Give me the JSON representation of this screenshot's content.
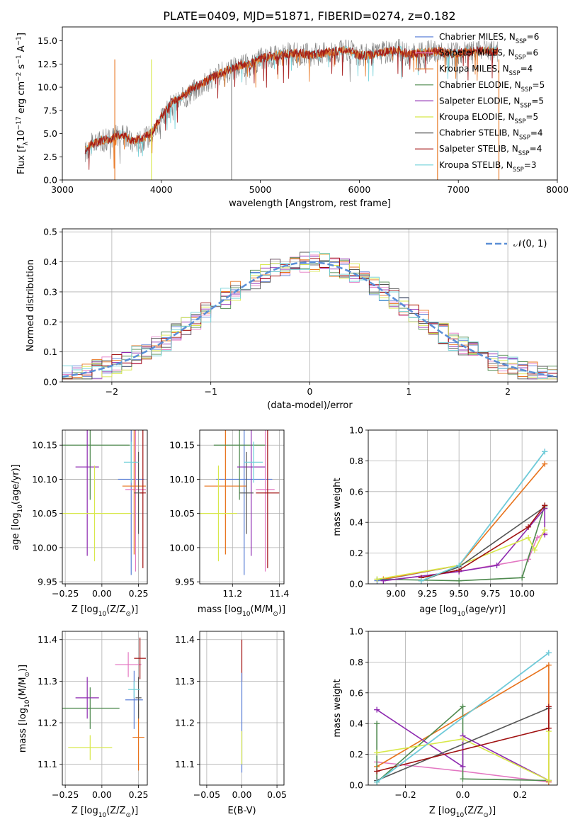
{
  "title": "PLATE=0409, MJD=51871, FIBERID=0274, z=0.182",
  "colors": {
    "chabrier_miles": "#5b7fd6",
    "salpeter_miles": "#e377c2",
    "kroupa_miles": "#e8731c",
    "chabrier_elodie": "#4f8a4f",
    "salpeter_elodie": "#8e2ab0",
    "kroupa_elodie": "#d8e84a",
    "chabrier_stelib": "#555555",
    "salpeter_stelib": "#a01010",
    "kroupa_stelib": "#6fd0d8",
    "normal": "#5b8fd6",
    "data": "#808080"
  },
  "chart_data": [
    {
      "id": "spectrum",
      "type": "line",
      "xlabel": "wavelength [Angstrom, rest frame]",
      "ylabel": "Flux [f_λ 10^-17 erg cm^-2 s^-1 A^-1]",
      "xlim": [
        3000,
        8000
      ],
      "ylim": [
        0,
        16.5
      ],
      "xticks": [
        "3000",
        "4000",
        "5000",
        "6000",
        "7000",
        "8000"
      ],
      "yticks": [
        "0.0",
        "2.5",
        "5.0",
        "7.5",
        "10.0",
        "12.5",
        "15.0"
      ],
      "legend": [
        {
          "label": "Chabrier MILES, N",
          "sub": "SSP",
          "eq": "=6",
          "color": "#5b7fd6"
        },
        {
          "label": "Salpeter MILES, N",
          "sub": "SSP",
          "eq": "=6",
          "color": "#e377c2"
        },
        {
          "label": "Kroupa MILES, N",
          "sub": "SSP",
          "eq": "=4",
          "color": "#e8731c"
        },
        {
          "label": "Chabrier ELODIE, N",
          "sub": "SSP",
          "eq": "=5",
          "color": "#4f8a4f"
        },
        {
          "label": "Salpeter ELODIE, N",
          "sub": "SSP",
          "eq": "=5",
          "color": "#8e2ab0"
        },
        {
          "label": "Kroupa ELODIE, N",
          "sub": "SSP",
          "eq": "=5",
          "color": "#d8e84a"
        },
        {
          "label": "Chabrier STELIB, N",
          "sub": "SSP",
          "eq": "=4",
          "color": "#555555"
        },
        {
          "label": "Salpeter STELIB, N",
          "sub": "SSP",
          "eq": "=4",
          "color": "#a01010"
        },
        {
          "label": "Kroupa STELIB, N",
          "sub": "SSP",
          "eq": "=3",
          "color": "#6fd0d8"
        }
      ],
      "series": [
        {
          "name": "data",
          "x": [
            3230,
            3300,
            3400,
            3500,
            3600,
            3700,
            3800,
            3900,
            4000,
            4100,
            4200,
            4300,
            4400,
            4500,
            4600,
            4700,
            4800,
            4900,
            5000,
            5100,
            5200,
            5300,
            5400,
            5500,
            5600,
            5700,
            5800,
            5900,
            6000,
            6100,
            6200,
            6300,
            6400,
            6500,
            6600,
            6700,
            6800,
            6900,
            7000,
            7100,
            7200,
            7300,
            7400
          ],
          "y": [
            3.0,
            3.8,
            4.2,
            4.6,
            5.2,
            4.0,
            4.2,
            5.0,
            6.5,
            8.0,
            8.6,
            9.5,
            10.2,
            10.8,
            11.4,
            11.9,
            12.3,
            12.4,
            13.0,
            13.2,
            13.5,
            13.6,
            13.6,
            13.5,
            13.6,
            13.8,
            13.8,
            13.9,
            13.3,
            13.5,
            13.7,
            13.9,
            14.0,
            13.4,
            13.6,
            13.8,
            13.8,
            13.5,
            13.6,
            13.8,
            13.8,
            13.9,
            13.9
          ]
        },
        {
          "name": "model",
          "x": [
            3230,
            3300,
            3400,
            3500,
            3600,
            3700,
            3800,
            3900,
            4000,
            4100,
            4200,
            4300,
            4400,
            4500,
            4600,
            4700,
            4800,
            4900,
            5000,
            5100,
            5200,
            5300,
            5400,
            5500,
            5600,
            5700,
            5800,
            5900,
            6000,
            6100,
            6200,
            6300,
            6400,
            6500,
            6600,
            6700,
            6800,
            6900,
            7000,
            7100,
            7200,
            7300,
            7400
          ],
          "y": [
            3.3,
            3.9,
            4.3,
            4.4,
            5.0,
            4.2,
            4.4,
            5.1,
            6.8,
            8.3,
            8.9,
            9.8,
            10.3,
            11.0,
            11.5,
            12.0,
            12.4,
            12.5,
            13.1,
            13.3,
            13.5,
            13.6,
            13.7,
            13.5,
            13.6,
            13.8,
            13.9,
            13.9,
            13.4,
            13.5,
            13.7,
            13.9,
            14.0,
            13.5,
            13.7,
            13.8,
            13.9,
            13.6,
            13.7,
            13.8,
            13.9,
            13.9,
            13.9
          ]
        }
      ]
    },
    {
      "id": "residuals",
      "type": "line",
      "xlabel": "(data-model)/error",
      "ylabel": "Normed distribution",
      "xlim": [
        -2.5,
        2.5
      ],
      "ylim": [
        0,
        0.51
      ],
      "xticks": [
        "−2",
        "−1",
        "0",
        "1",
        "2"
      ],
      "yticks": [
        "0.0",
        "0.1",
        "0.2",
        "0.3",
        "0.4",
        "0.5"
      ],
      "legend_label": "𝒩(0, 1)"
    },
    {
      "id": "age_vs_Z",
      "type": "scatter",
      "xlabel": "Z [log10(Z/Z⊙)]",
      "ylabel": "age [log10(age/yr)]",
      "xlim": [
        -0.27,
        0.31
      ],
      "ylim": [
        9.947,
        10.172
      ],
      "xticks": [
        "−0.25",
        "0.00",
        "0.25"
      ],
      "yticks": [
        "9.95",
        "10.00",
        "10.05",
        "10.10",
        "10.15"
      ],
      "points": [
        {
          "color": "#5b7fd6",
          "x": 0.2,
          "y": 10.1,
          "xerr": 0.09,
          "yerr": 0.14
        },
        {
          "color": "#e377c2",
          "x": 0.23,
          "y": 10.085,
          "xerr": 0.07,
          "yerr": 0.12
        },
        {
          "color": "#e8731c",
          "x": 0.22,
          "y": 10.09,
          "xerr": 0.08,
          "yerr": 0.1
        },
        {
          "color": "#4f8a4f",
          "x": -0.08,
          "y": 10.15,
          "xerr": 0.27,
          "yerr": 0.08
        },
        {
          "color": "#8e2ab0",
          "x": -0.1,
          "y": 10.118,
          "xerr": 0.08,
          "yerr": 0.13
        },
        {
          "color": "#d8e84a",
          "x": -0.05,
          "y": 10.05,
          "xerr": 0.25,
          "yerr": 0.07
        },
        {
          "color": "#555555",
          "x": 0.25,
          "y": 10.08,
          "xerr": 0.03,
          "yerr": 0.06
        },
        {
          "color": "#a01010",
          "x": 0.28,
          "y": 10.08,
          "xerr": 0.02,
          "yerr": 0.11
        },
        {
          "color": "#6fd0d8",
          "x": 0.2,
          "y": 10.125,
          "xerr": 0.05,
          "yerr": 0.03
        }
      ]
    },
    {
      "id": "age_vs_mass",
      "type": "scatter",
      "xlabel": "mass [log10(M/M⊙)]",
      "xlim": [
        11.06,
        11.42
      ],
      "ylim": [
        9.947,
        10.172
      ],
      "xticks": [
        "11.2",
        "11.4"
      ],
      "yticks": [
        "9.95",
        "10.00",
        "10.05",
        "10.10",
        "10.15"
      ],
      "points": [
        {
          "color": "#5b7fd6",
          "x": 11.25,
          "y": 10.1,
          "xerr": 0.12,
          "yerr": 0.14
        },
        {
          "color": "#e377c2",
          "x": 11.34,
          "y": 10.085,
          "xerr": 0.04,
          "yerr": 0.12
        },
        {
          "color": "#e8731c",
          "x": 11.17,
          "y": 10.09,
          "xerr": 0.09,
          "yerr": 0.1
        },
        {
          "color": "#4f8a4f",
          "x": 11.23,
          "y": 10.15,
          "xerr": 0.11,
          "yerr": 0.08
        },
        {
          "color": "#8e2ab0",
          "x": 11.28,
          "y": 10.118,
          "xerr": 0.06,
          "yerr": 0.13
        },
        {
          "color": "#d8e84a",
          "x": 11.14,
          "y": 10.05,
          "xerr": 0.08,
          "yerr": 0.07
        },
        {
          "color": "#555555",
          "x": 11.26,
          "y": 10.08,
          "xerr": 0.03,
          "yerr": 0.06
        },
        {
          "color": "#a01010",
          "x": 11.35,
          "y": 10.08,
          "xerr": 0.05,
          "yerr": 0.11
        },
        {
          "color": "#6fd0d8",
          "x": 11.29,
          "y": 10.125,
          "xerr": 0.04,
          "yerr": 0.03
        }
      ]
    },
    {
      "id": "weight_vs_age",
      "type": "line",
      "xlabel": "age [log10(age/yr)]",
      "ylabel": "mass weight",
      "xlim": [
        8.78,
        10.28
      ],
      "ylim": [
        0,
        1.0
      ],
      "xticks": [
        "9.00",
        "9.25",
        "9.50",
        "9.75",
        "10.00"
      ],
      "yticks": [
        "0.0",
        "0.2",
        "0.4",
        "0.6",
        "0.8",
        "1.0"
      ],
      "series": [
        {
          "color": "#5b7fd6",
          "x": [
            8.85,
            9.5,
            10.18
          ],
          "y": [
            0.02,
            0.12,
            0.86
          ]
        },
        {
          "color": "#e377c2",
          "x": [
            8.9,
            9.5,
            10.05,
            10.12,
            10.18
          ],
          "y": [
            0.02,
            0.08,
            0.16,
            0.3,
            0.33
          ]
        },
        {
          "color": "#e8731c",
          "x": [
            8.9,
            9.5,
            10.18
          ],
          "y": [
            0.03,
            0.12,
            0.78
          ]
        },
        {
          "color": "#4f8a4f",
          "x": [
            8.85,
            9.5,
            10.0,
            10.18
          ],
          "y": [
            0.03,
            0.02,
            0.04,
            0.51
          ]
        },
        {
          "color": "#8e2ab0",
          "x": [
            8.9,
            9.5,
            9.8,
            10.18,
            10.18
          ],
          "y": [
            0.02,
            0.08,
            0.12,
            0.49,
            0.32
          ]
        },
        {
          "color": "#d8e84a",
          "x": [
            8.85,
            9.5,
            10.05,
            10.1,
            10.18
          ],
          "y": [
            0.03,
            0.12,
            0.3,
            0.22,
            0.35
          ]
        },
        {
          "color": "#555555",
          "x": [
            9.2,
            9.5,
            10.18
          ],
          "y": [
            0.02,
            0.11,
            0.5
          ]
        },
        {
          "color": "#a01010",
          "x": [
            9.2,
            9.5,
            10.05,
            10.18
          ],
          "y": [
            0.04,
            0.09,
            0.37,
            0.51
          ]
        },
        {
          "color": "#6fd0d8",
          "x": [
            9.2,
            9.5,
            10.18
          ],
          "y": [
            0.02,
            0.12,
            0.86
          ]
        }
      ]
    },
    {
      "id": "mass_vs_Z",
      "type": "scatter",
      "xlabel": "Z [log10(Z/Z⊙)]",
      "ylabel": "mass [log10(M/M⊙)]",
      "xlim": [
        -0.27,
        0.31
      ],
      "ylim": [
        11.05,
        11.42
      ],
      "xticks": [
        "−0.25",
        "0.00",
        "0.25"
      ],
      "yticks": [
        "11.1",
        "11.2",
        "11.3",
        "11.4"
      ],
      "points": [
        {
          "color": "#5b7fd6",
          "x": 0.22,
          "y": 11.255,
          "xerr": 0.06,
          "yerr": 0.07
        },
        {
          "color": "#e377c2",
          "x": 0.18,
          "y": 11.34,
          "xerr": 0.09,
          "yerr": 0.03
        },
        {
          "color": "#e8731c",
          "x": 0.25,
          "y": 11.165,
          "xerr": 0.04,
          "yerr": 0.08
        },
        {
          "color": "#4f8a4f",
          "x": -0.08,
          "y": 11.235,
          "xerr": 0.2,
          "yerr": 0.05
        },
        {
          "color": "#8e2ab0",
          "x": -0.1,
          "y": 11.26,
          "xerr": 0.08,
          "yerr": 0.05
        },
        {
          "color": "#d8e84a",
          "x": -0.08,
          "y": 11.14,
          "xerr": 0.15,
          "yerr": 0.03
        },
        {
          "color": "#555555",
          "x": 0.25,
          "y": 11.26,
          "xerr": 0.02,
          "yerr": 0.05
        },
        {
          "color": "#a01010",
          "x": 0.26,
          "y": 11.355,
          "xerr": 0.04,
          "yerr": 0.05
        },
        {
          "color": "#6fd0d8",
          "x": 0.22,
          "y": 11.28,
          "xerr": 0.04,
          "yerr": 0.02
        }
      ]
    },
    {
      "id": "mass_vs_ebv",
      "type": "scatter",
      "xlabel": "E(B-V)",
      "xlim": [
        -0.06,
        0.06
      ],
      "ylim": [
        11.05,
        11.42
      ],
      "xticks": [
        "−0.05",
        "0.00",
        "0.05"
      ],
      "yticks": [
        "11.1",
        "11.2",
        "11.3",
        "11.4"
      ],
      "points": [
        {
          "color": "#a01010",
          "x": 0.0,
          "y": 11.35,
          "xerr": 0,
          "yerr": 0.05
        },
        {
          "color": "#5b7fd6",
          "x": 0.0,
          "y": 11.2,
          "xerr": 0,
          "yerr": 0.12
        },
        {
          "color": "#d8e84a",
          "x": 0.0,
          "y": 11.14,
          "xerr": 0,
          "yerr": 0.04
        }
      ]
    },
    {
      "id": "weight_vs_Z",
      "type": "line",
      "xlabel": "Z [log10(Z/Z⊙)]",
      "ylabel": "mass weight",
      "xlim": [
        -0.33,
        0.33
      ],
      "ylim": [
        0,
        1.0
      ],
      "xticks": [
        "−0.2",
        "0.0",
        "0.2"
      ],
      "yticks": [
        "0.0",
        "0.2",
        "0.4",
        "0.6",
        "0.8",
        "1.0"
      ],
      "series": [
        {
          "color": "#5b7fd6",
          "x": [
            -0.3,
            0.3
          ],
          "y": [
            0.02,
            0.86
          ]
        },
        {
          "color": "#e377c2",
          "x": [
            -0.3,
            0.0,
            0.3
          ],
          "y": [
            0.15,
            0.09,
            0.02
          ]
        },
        {
          "color": "#e8731c",
          "x": [
            -0.3,
            0.3,
            0.3
          ],
          "y": [
            0.12,
            0.78,
            0.02
          ]
        },
        {
          "color": "#4f8a4f",
          "x": [
            -0.3,
            -0.3,
            0.0,
            0.0,
            0.3
          ],
          "y": [
            0.4,
            0.02,
            0.51,
            0.04,
            0.03
          ]
        },
        {
          "color": "#8e2ab0",
          "x": [
            -0.3,
            0.0,
            0.0,
            0.3
          ],
          "y": [
            0.49,
            0.12,
            0.32,
            0.03
          ]
        },
        {
          "color": "#d8e84a",
          "x": [
            -0.3,
            0.0,
            0.3,
            0.3
          ],
          "y": [
            0.21,
            0.3,
            0.03,
            0.35
          ]
        },
        {
          "color": "#555555",
          "x": [
            -0.3,
            0.3
          ],
          "y": [
            0.03,
            0.5
          ]
        },
        {
          "color": "#a01010",
          "x": [
            -0.3,
            0.3,
            0.3
          ],
          "y": [
            0.09,
            0.37,
            0.51
          ]
        },
        {
          "color": "#6fd0d8",
          "x": [
            -0.3,
            0.3
          ],
          "y": [
            0.02,
            0.86
          ]
        }
      ]
    }
  ]
}
